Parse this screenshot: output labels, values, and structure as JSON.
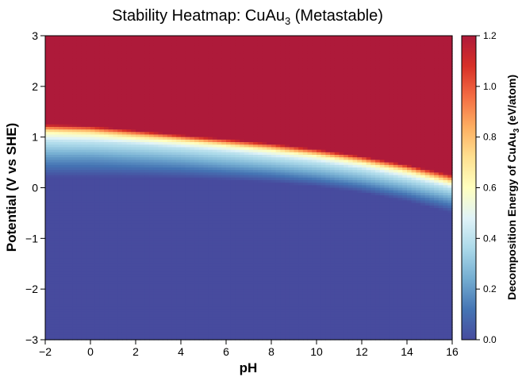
{
  "chart_data": {
    "type": "heatmap",
    "title": "Stability Heatmap: CuAu",
    "title_subscript": "3",
    "title_suffix": " (Metastable)",
    "xlabel": "pH",
    "ylabel": "Potential (V vs SHE)",
    "xlim": [
      -2,
      16
    ],
    "ylim": [
      -3,
      3
    ],
    "xticks": [
      "−2",
      "0",
      "2",
      "4",
      "6",
      "8",
      "10",
      "12",
      "14",
      "16"
    ],
    "yticks": [
      "−3",
      "−2",
      "−1",
      "0",
      "1",
      "2",
      "3"
    ],
    "colorbar": {
      "label": "Decomposition Energy of CuAu",
      "label_subscript": "3",
      "label_suffix": " (eV/atom)",
      "vmin": 0.0,
      "vmax": 1.2,
      "ticks": [
        "0.0",
        "0.2",
        "0.4",
        "0.6",
        "0.8",
        "1.0",
        "1.2"
      ],
      "colormap": [
        "#474b9e",
        "#4575b4",
        "#74add1",
        "#abd9e9",
        "#e0f3f8",
        "#ffffbf",
        "#fee090",
        "#fdae61",
        "#f46d43",
        "#d73027",
        "#ae1a3a"
      ]
    },
    "grid": false,
    "contour_levels": [
      0.0,
      0.2,
      0.4,
      0.6,
      0.8,
      1.0,
      1.2
    ],
    "contour_ph": [
      -2,
      0,
      2,
      4,
      6,
      8,
      10,
      12,
      14,
      16
    ],
    "contour_potentials": [
      [
        0.2,
        0.6,
        0.92,
        1.08,
        1.15,
        1.2,
        1.25
      ],
      [
        0.2,
        0.6,
        0.9,
        1.05,
        1.12,
        1.17,
        1.22
      ],
      [
        0.2,
        0.55,
        0.85,
        0.97,
        1.04,
        1.09,
        1.13
      ],
      [
        0.18,
        0.5,
        0.78,
        0.9,
        0.96,
        1.0,
        1.04
      ],
      [
        0.15,
        0.42,
        0.7,
        0.82,
        0.87,
        0.92,
        0.96
      ],
      [
        0.1,
        0.35,
        0.6,
        0.73,
        0.78,
        0.83,
        0.87
      ],
      [
        0.02,
        0.25,
        0.5,
        0.62,
        0.67,
        0.72,
        0.76
      ],
      [
        -0.1,
        0.12,
        0.36,
        0.48,
        0.53,
        0.58,
        0.62
      ],
      [
        -0.27,
        -0.05,
        0.18,
        0.3,
        0.36,
        0.41,
        0.45
      ],
      [
        -0.5,
        -0.25,
        -0.02,
        0.08,
        0.14,
        0.2,
        0.25
      ]
    ]
  }
}
